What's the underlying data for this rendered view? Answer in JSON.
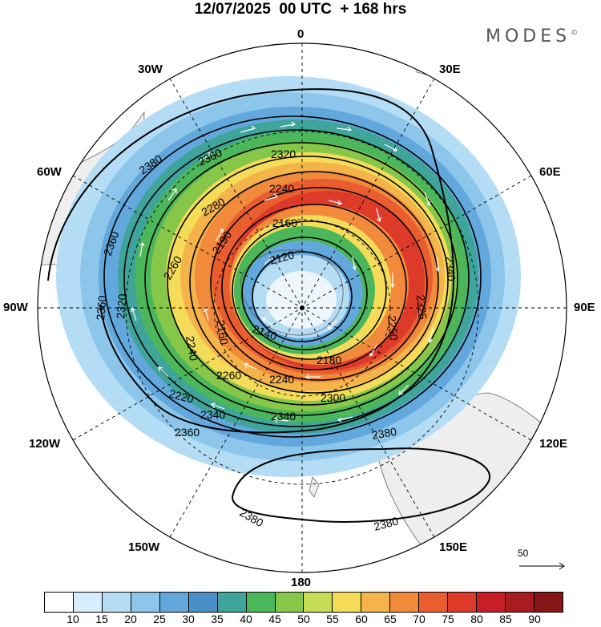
{
  "title": "12/07/2025  00 UTC  + 168 hrs",
  "brand": "MODES",
  "brand_mark": "©",
  "longitudes": {
    "top": "0",
    "bottom": "180",
    "left": "90W",
    "right": "90E",
    "nw1": "30W",
    "nw2": "60W",
    "ne1": "30E",
    "ne2": "60E",
    "sw1": "120W",
    "sw2": "150W",
    "se1": "120E",
    "se2": "150E"
  },
  "contour_labels": [
    "2380",
    "2360",
    "2360",
    "2320",
    "2240",
    "2280",
    "2160",
    "2190",
    "2120",
    "2260",
    "2320",
    "2360",
    "2240",
    "2160",
    "2140",
    "2180",
    "2340",
    "2340",
    "2260",
    "2240",
    "2220",
    "2300",
    "2360",
    "2380",
    "2380",
    "2380",
    "2340",
    "2325",
    "2250"
  ],
  "colorbar": {
    "ticks": [
      "10",
      "15",
      "20",
      "25",
      "30",
      "35",
      "40",
      "45",
      "50",
      "55",
      "60",
      "65",
      "70",
      "75",
      "80",
      "85",
      "90"
    ],
    "colors": [
      "#ffffff",
      "#d6eefb",
      "#b4ddf5",
      "#8cc6ea",
      "#62a8dc",
      "#4a8fc8",
      "#3fa49a",
      "#4cb65a",
      "#86c74a",
      "#c6dc55",
      "#f4dc58",
      "#f5b44a",
      "#f28a3b",
      "#e95d2e",
      "#dd3a2a",
      "#c81f26",
      "#a81c20",
      "#861618"
    ]
  },
  "reference_vector": "50"
}
